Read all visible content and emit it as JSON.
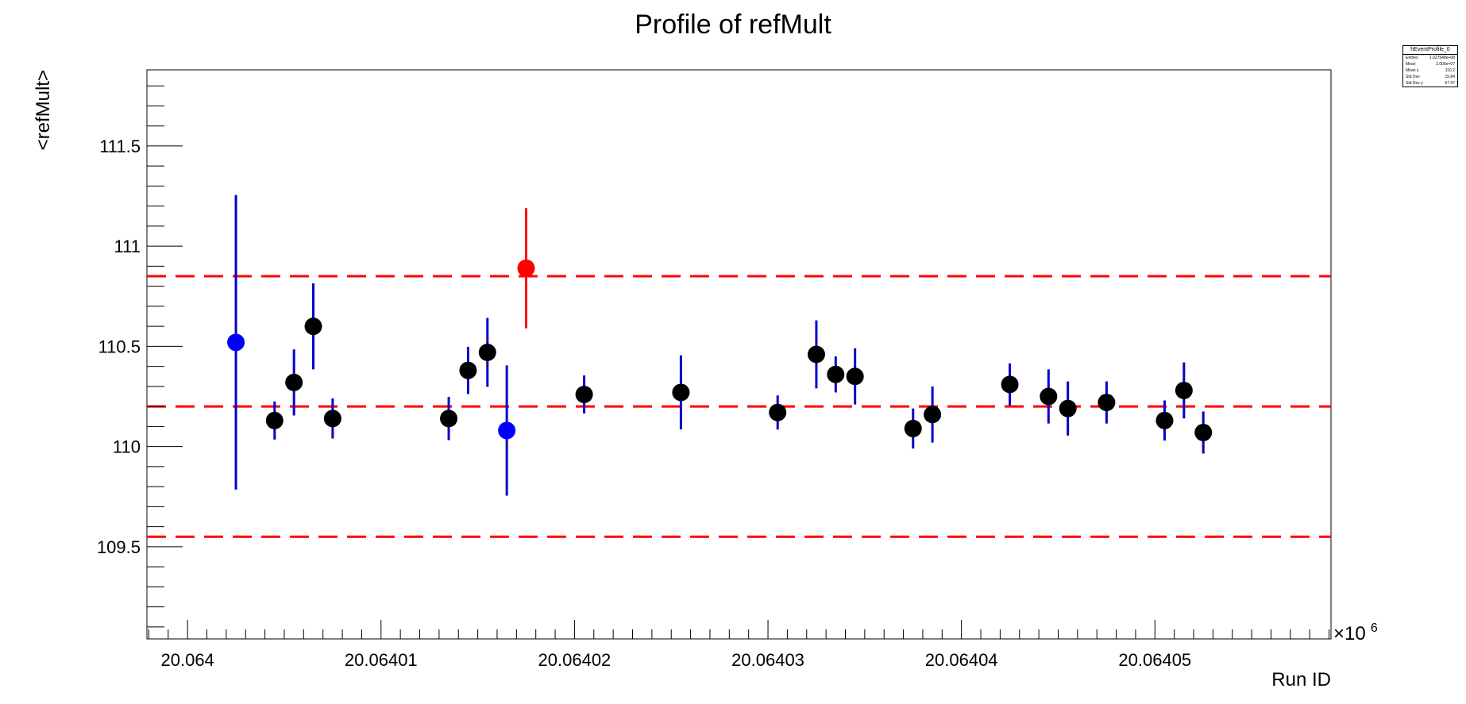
{
  "chart_data": {
    "type": "scatter",
    "title": "Profile of refMult",
    "xlabel": "Run ID",
    "ylabel": "<refMult>",
    "x_multiplier_label": "×10",
    "x_multiplier_exponent": "6",
    "xlim": [
      20.0639979,
      20.0640591
    ],
    "ylim": [
      109.04,
      111.88
    ],
    "y_ticks": [
      {
        "value": 109.5,
        "label": "109.5"
      },
      {
        "value": 110,
        "label": "110"
      },
      {
        "value": 110.5,
        "label": "110.5"
      },
      {
        "value": 111,
        "label": "111"
      },
      {
        "value": 111.5,
        "label": "111.5"
      }
    ],
    "x_ticks": [
      {
        "value": 20.064,
        "label": "20.064"
      },
      {
        "value": 20.06401,
        "label": "20.06401"
      },
      {
        "value": 20.06402,
        "label": "20.06402"
      },
      {
        "value": 20.06403,
        "label": "20.06403"
      },
      {
        "value": 20.06404,
        "label": "20.06404"
      },
      {
        "value": 20.06405,
        "label": "20.06405"
      }
    ],
    "reference_lines": [
      {
        "y": 110.85,
        "color": "#ff0000",
        "style": "dashed"
      },
      {
        "y": 110.2,
        "color": "#ff0000",
        "style": "dashed"
      },
      {
        "y": 109.55,
        "color": "#ff0000",
        "style": "dashed"
      }
    ],
    "marker_colors": {
      "normal": "#000000",
      "low_stats": "#0000ff",
      "outlier": "#ff0000",
      "error_bar": "#0000cc"
    },
    "points": [
      {
        "x": 20.0640025,
        "y": 110.52,
        "yerr": 0.735,
        "category": "low_stats"
      },
      {
        "x": 20.0640045,
        "y": 110.13,
        "yerr": 0.095,
        "category": "normal"
      },
      {
        "x": 20.0640055,
        "y": 110.32,
        "yerr": 0.165,
        "category": "normal"
      },
      {
        "x": 20.0640065,
        "y": 110.6,
        "yerr": 0.215,
        "category": "normal"
      },
      {
        "x": 20.0640075,
        "y": 110.14,
        "yerr": 0.1,
        "category": "normal"
      },
      {
        "x": 20.0640135,
        "y": 110.14,
        "yerr": 0.108,
        "category": "normal"
      },
      {
        "x": 20.0640145,
        "y": 110.38,
        "yerr": 0.118,
        "category": "normal"
      },
      {
        "x": 20.0640155,
        "y": 110.47,
        "yerr": 0.172,
        "category": "normal"
      },
      {
        "x": 20.0640165,
        "y": 110.08,
        "yerr": 0.325,
        "category": "low_stats"
      },
      {
        "x": 20.0640175,
        "y": 110.89,
        "yerr": 0.3,
        "category": "outlier"
      },
      {
        "x": 20.0640205,
        "y": 110.26,
        "yerr": 0.095,
        "category": "normal"
      },
      {
        "x": 20.0640255,
        "y": 110.27,
        "yerr": 0.185,
        "category": "normal"
      },
      {
        "x": 20.0640305,
        "y": 110.17,
        "yerr": 0.085,
        "category": "normal"
      },
      {
        "x": 20.0640325,
        "y": 110.46,
        "yerr": 0.17,
        "category": "normal"
      },
      {
        "x": 20.0640335,
        "y": 110.36,
        "yerr": 0.09,
        "category": "normal"
      },
      {
        "x": 20.0640345,
        "y": 110.35,
        "yerr": 0.14,
        "category": "normal"
      },
      {
        "x": 20.0640375,
        "y": 110.09,
        "yerr": 0.1,
        "category": "normal"
      },
      {
        "x": 20.0640385,
        "y": 110.16,
        "yerr": 0.14,
        "category": "normal"
      },
      {
        "x": 20.0640425,
        "y": 110.31,
        "yerr": 0.105,
        "category": "normal"
      },
      {
        "x": 20.0640445,
        "y": 110.25,
        "yerr": 0.135,
        "category": "normal"
      },
      {
        "x": 20.0640455,
        "y": 110.19,
        "yerr": 0.135,
        "category": "normal"
      },
      {
        "x": 20.0640475,
        "y": 110.22,
        "yerr": 0.105,
        "category": "normal"
      },
      {
        "x": 20.0640505,
        "y": 110.13,
        "yerr": 0.1,
        "category": "normal"
      },
      {
        "x": 20.0640515,
        "y": 110.28,
        "yerr": 0.14,
        "category": "normal"
      },
      {
        "x": 20.0640525,
        "y": 110.07,
        "yerr": 0.105,
        "category": "normal"
      }
    ],
    "statbox": {
      "title": "hEventProfile_0",
      "rows": [
        {
          "label": "Entries",
          "value": "1.027548e+08"
        },
        {
          "label": "Mean",
          "value": "2.006e+07"
        },
        {
          "label": "Mean y",
          "value": "110.2"
        },
        {
          "label": "Std Dev",
          "value": "15.84"
        },
        {
          "label": "Std Dev y",
          "value": "67.47"
        }
      ]
    }
  }
}
